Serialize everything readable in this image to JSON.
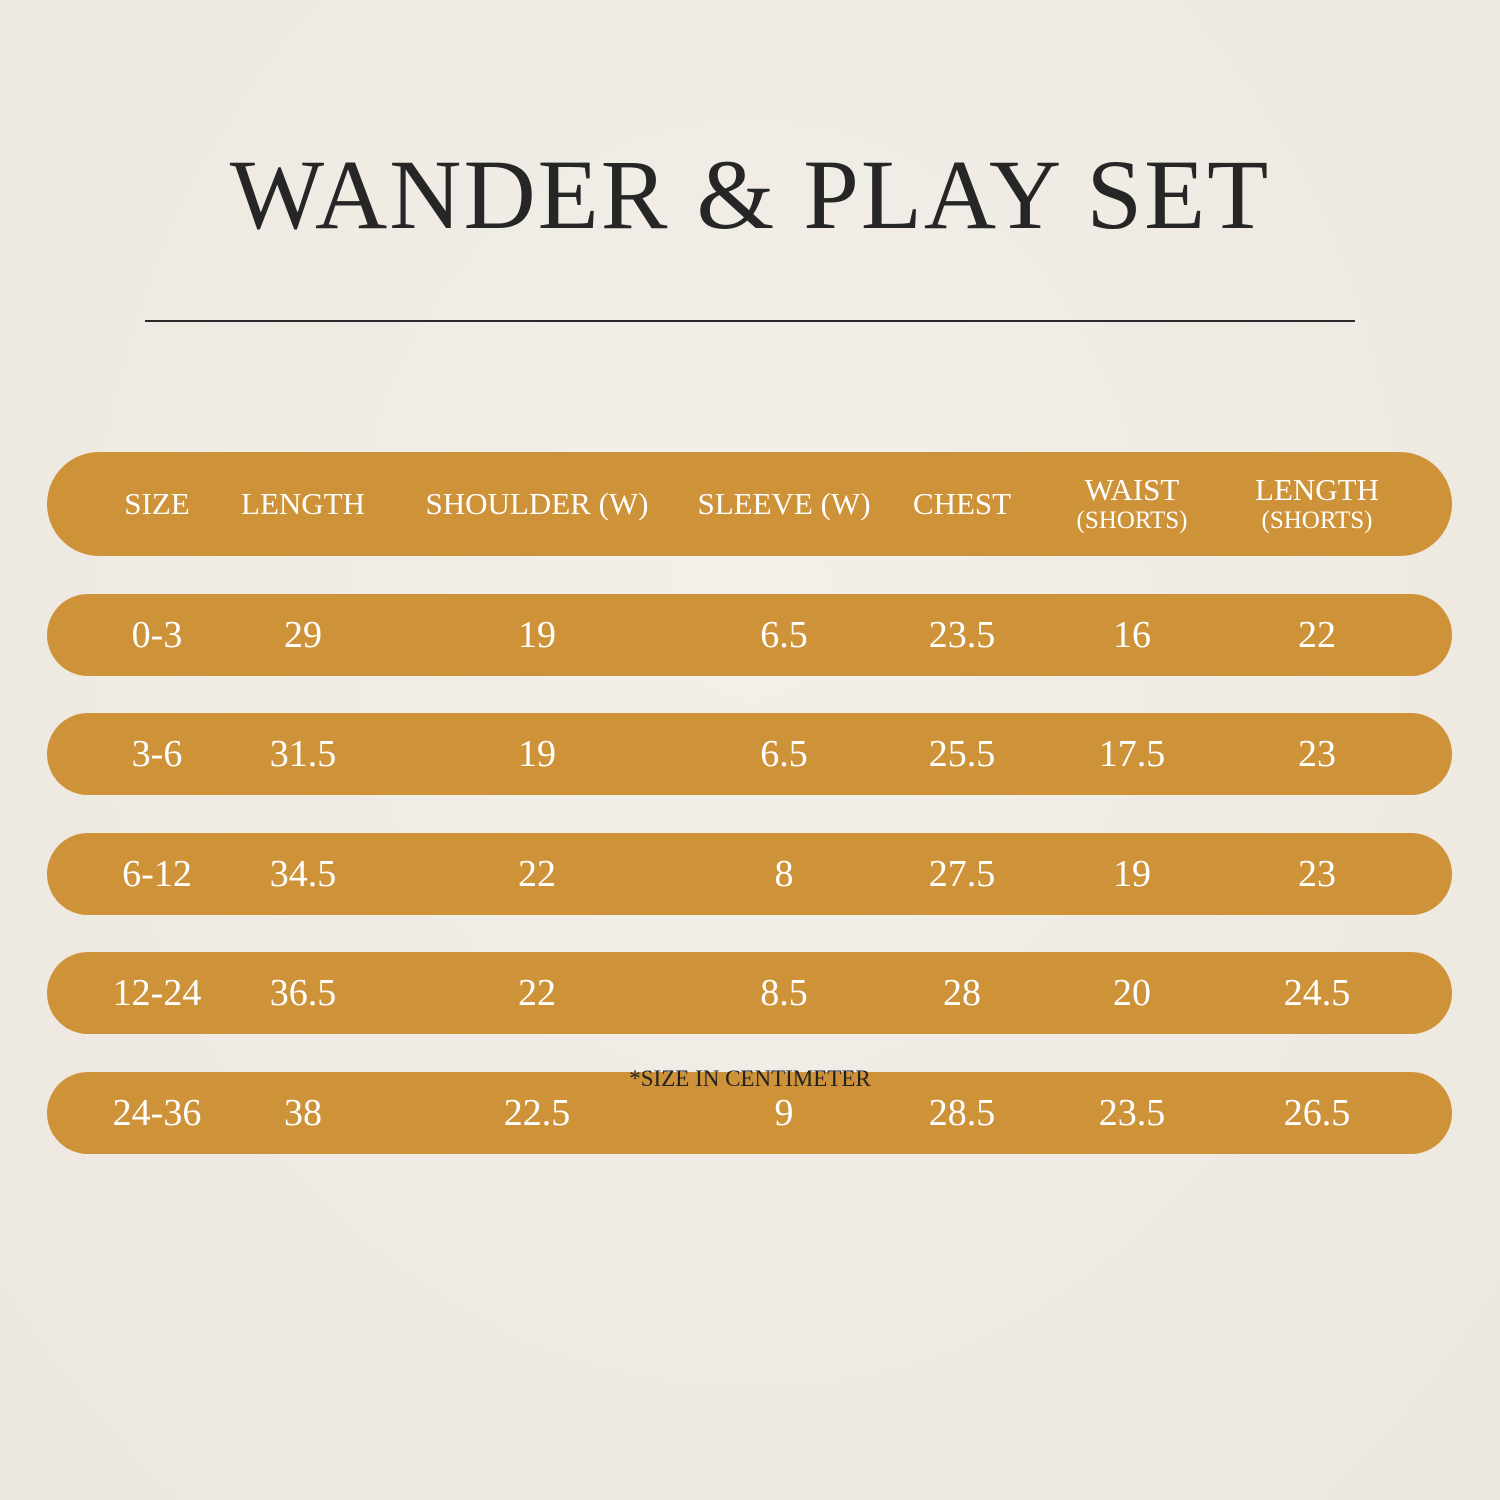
{
  "title": "WANDER & PLAY SET",
  "colors": {
    "bar": "#ce9238",
    "background": "#efebe3",
    "text": "#ffffff"
  },
  "headers": [
    {
      "label": "SIZE",
      "sub": ""
    },
    {
      "label": "LENGTH",
      "sub": ""
    },
    {
      "label": "SHOULDER (W)",
      "sub": ""
    },
    {
      "label": "SLEEVE (W)",
      "sub": ""
    },
    {
      "label": "CHEST",
      "sub": ""
    },
    {
      "label": "WAIST",
      "sub": "(SHORTS)"
    },
    {
      "label": "LENGTH",
      "sub": "(SHORTS)"
    }
  ],
  "rows": [
    [
      "0-3",
      "29",
      "19",
      "6.5",
      "23.5",
      "16",
      "22"
    ],
    [
      "3-6",
      "31.5",
      "19",
      "6.5",
      "25.5",
      "17.5",
      "23"
    ],
    [
      "6-12",
      "34.5",
      "22",
      "8",
      "27.5",
      "19",
      "23"
    ],
    [
      "12-24",
      "36.5",
      "22",
      "8.5",
      "28",
      "20",
      "24.5"
    ],
    [
      "24-36",
      "38",
      "22.5",
      "9",
      "28.5",
      "23.5",
      "26.5"
    ]
  ],
  "footnote": "*SIZE IN CENTIMETER"
}
